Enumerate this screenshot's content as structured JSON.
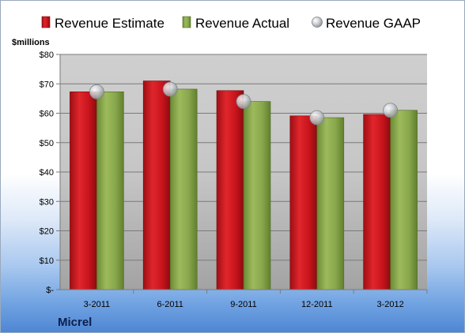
{
  "chart_data": {
    "type": "bar",
    "unit_label": "$millions",
    "company": "Micrel",
    "categories": [
      "3-2011",
      "6-2011",
      "9-2011",
      "12-2011",
      "3-2012"
    ],
    "series": [
      {
        "name": "Revenue Estimate",
        "kind": "bar",
        "color": "#c8141c",
        "values": [
          67.3,
          71.0,
          67.7,
          59.1,
          59.6
        ]
      },
      {
        "name": "Revenue Actual",
        "kind": "bar",
        "color": "#8aa84c",
        "values": [
          67.3,
          68.2,
          64.0,
          58.5,
          61.0
        ]
      },
      {
        "name": "Revenue GAAP",
        "kind": "marker",
        "color": "#b4b8be",
        "values": [
          67.3,
          68.2,
          64.0,
          58.5,
          61.0
        ]
      }
    ],
    "ylim": [
      0,
      80
    ],
    "yticks": [
      0,
      10,
      20,
      30,
      40,
      50,
      60,
      70,
      80
    ],
    "ytick_labels": [
      "$-",
      "$10",
      "$20",
      "$30",
      "$40",
      "$50",
      "$60",
      "$70",
      "$80"
    ],
    "grid": true,
    "legend_position": "top"
  }
}
